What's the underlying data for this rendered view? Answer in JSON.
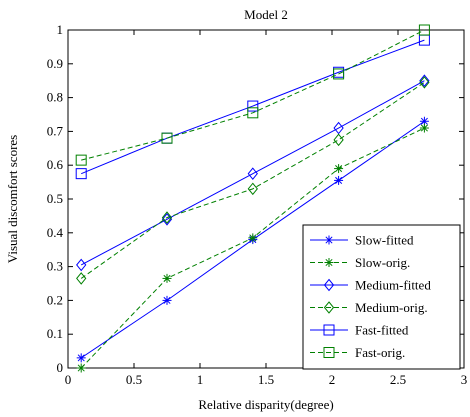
{
  "chart_data": {
    "type": "line",
    "title": "Model 2",
    "xlabel": "Relative disparity(degree)",
    "ylabel": "Visual discomfort scores",
    "xlim": [
      0,
      3
    ],
    "ylim": [
      0,
      1
    ],
    "xticks": [
      0,
      0.5,
      1,
      1.5,
      2,
      2.5,
      3
    ],
    "yticks": [
      0,
      0.1,
      0.2,
      0.3,
      0.4,
      0.5,
      0.6,
      0.7,
      0.8,
      0.9,
      1
    ],
    "xtick_labels": [
      "0",
      "0.5",
      "1",
      "1.5",
      "2",
      "2.5",
      "3"
    ],
    "ytick_labels": [
      "0",
      "0.1",
      "0.2",
      "0.3",
      "0.4",
      "0.5",
      "0.6",
      "0.7",
      "0.8",
      "0.9",
      "1"
    ],
    "x": [
      0.1,
      0.75,
      1.4,
      2.05,
      2.7
    ],
    "legend_position": "bottom-right",
    "grid": false,
    "series": [
      {
        "name": "Slow-fitted",
        "marker": "asterisk",
        "line": "solid",
        "color": "#0000ff",
        "values": [
          0.03,
          0.2,
          0.38,
          0.555,
          0.73
        ]
      },
      {
        "name": "Slow-orig.",
        "marker": "asterisk",
        "line": "dashed",
        "color": "#008000",
        "values": [
          0.0,
          0.265,
          0.385,
          0.59,
          0.71
        ]
      },
      {
        "name": "Medium-fitted",
        "marker": "diamond",
        "line": "solid",
        "color": "#0000ff",
        "values": [
          0.305,
          0.44,
          0.575,
          0.71,
          0.85
        ]
      },
      {
        "name": "Medium-orig.",
        "marker": "diamond",
        "line": "dashed",
        "color": "#008000",
        "values": [
          0.265,
          0.445,
          0.53,
          0.675,
          0.845
        ]
      },
      {
        "name": "Fast-fitted",
        "marker": "square",
        "line": "solid",
        "color": "#0000ff",
        "values": [
          0.575,
          0.68,
          0.775,
          0.875,
          0.97
        ]
      },
      {
        "name": "Fast-orig.",
        "marker": "square",
        "line": "dashed",
        "color": "#008000",
        "values": [
          0.615,
          0.68,
          0.755,
          0.87,
          1.0
        ]
      }
    ]
  }
}
